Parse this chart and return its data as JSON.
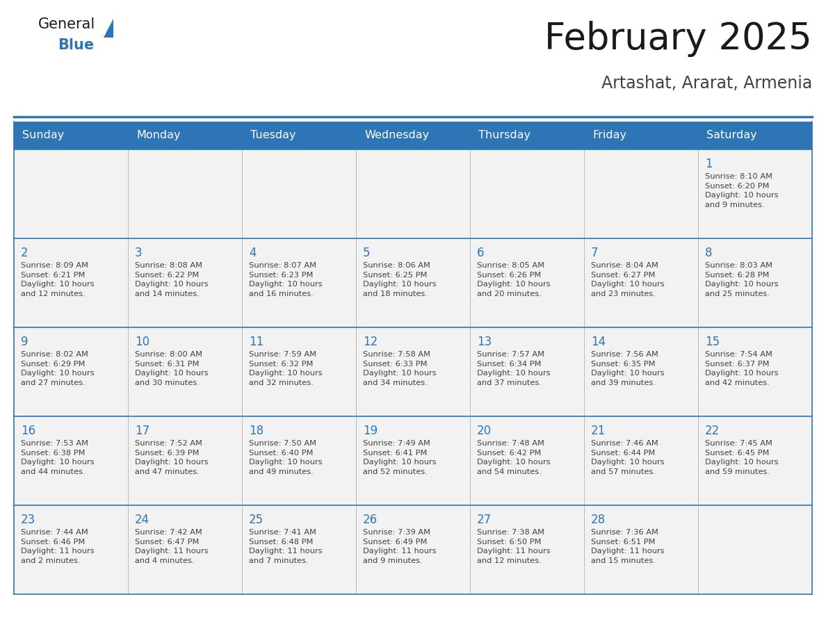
{
  "title": "February 2025",
  "subtitle": "Artashat, Ararat, Armenia",
  "days_of_week": [
    "Sunday",
    "Monday",
    "Tuesday",
    "Wednesday",
    "Thursday",
    "Friday",
    "Saturday"
  ],
  "header_bg": "#2E75B6",
  "header_text": "#FFFFFF",
  "cell_bg": "#F2F2F2",
  "day_number_color": "#2E75B6",
  "info_text_color": "#404040",
  "line_color": "#2E75B6",
  "title_color": "#1a1a1a",
  "subtitle_color": "#404040",
  "calendar": [
    [
      null,
      null,
      null,
      null,
      null,
      null,
      {
        "day": "1",
        "sunrise": "8:10 AM",
        "sunset": "6:20 PM",
        "daylight": "10 hours and 9 minutes."
      }
    ],
    [
      {
        "day": "2",
        "sunrise": "8:09 AM",
        "sunset": "6:21 PM",
        "daylight": "10 hours and 12 minutes."
      },
      {
        "day": "3",
        "sunrise": "8:08 AM",
        "sunset": "6:22 PM",
        "daylight": "10 hours and 14 minutes."
      },
      {
        "day": "4",
        "sunrise": "8:07 AM",
        "sunset": "6:23 PM",
        "daylight": "10 hours and 16 minutes."
      },
      {
        "day": "5",
        "sunrise": "8:06 AM",
        "sunset": "6:25 PM",
        "daylight": "10 hours and 18 minutes."
      },
      {
        "day": "6",
        "sunrise": "8:05 AM",
        "sunset": "6:26 PM",
        "daylight": "10 hours and 20 minutes."
      },
      {
        "day": "7",
        "sunrise": "8:04 AM",
        "sunset": "6:27 PM",
        "daylight": "10 hours and 23 minutes."
      },
      {
        "day": "8",
        "sunrise": "8:03 AM",
        "sunset": "6:28 PM",
        "daylight": "10 hours and 25 minutes."
      }
    ],
    [
      {
        "day": "9",
        "sunrise": "8:02 AM",
        "sunset": "6:29 PM",
        "daylight": "10 hours and 27 minutes."
      },
      {
        "day": "10",
        "sunrise": "8:00 AM",
        "sunset": "6:31 PM",
        "daylight": "10 hours and 30 minutes."
      },
      {
        "day": "11",
        "sunrise": "7:59 AM",
        "sunset": "6:32 PM",
        "daylight": "10 hours and 32 minutes."
      },
      {
        "day": "12",
        "sunrise": "7:58 AM",
        "sunset": "6:33 PM",
        "daylight": "10 hours and 34 minutes."
      },
      {
        "day": "13",
        "sunrise": "7:57 AM",
        "sunset": "6:34 PM",
        "daylight": "10 hours and 37 minutes."
      },
      {
        "day": "14",
        "sunrise": "7:56 AM",
        "sunset": "6:35 PM",
        "daylight": "10 hours and 39 minutes."
      },
      {
        "day": "15",
        "sunrise": "7:54 AM",
        "sunset": "6:37 PM",
        "daylight": "10 hours and 42 minutes."
      }
    ],
    [
      {
        "day": "16",
        "sunrise": "7:53 AM",
        "sunset": "6:38 PM",
        "daylight": "10 hours and 44 minutes."
      },
      {
        "day": "17",
        "sunrise": "7:52 AM",
        "sunset": "6:39 PM",
        "daylight": "10 hours and 47 minutes."
      },
      {
        "day": "18",
        "sunrise": "7:50 AM",
        "sunset": "6:40 PM",
        "daylight": "10 hours and 49 minutes."
      },
      {
        "day": "19",
        "sunrise": "7:49 AM",
        "sunset": "6:41 PM",
        "daylight": "10 hours and 52 minutes."
      },
      {
        "day": "20",
        "sunrise": "7:48 AM",
        "sunset": "6:42 PM",
        "daylight": "10 hours and 54 minutes."
      },
      {
        "day": "21",
        "sunrise": "7:46 AM",
        "sunset": "6:44 PM",
        "daylight": "10 hours and 57 minutes."
      },
      {
        "day": "22",
        "sunrise": "7:45 AM",
        "sunset": "6:45 PM",
        "daylight": "10 hours and 59 minutes."
      }
    ],
    [
      {
        "day": "23",
        "sunrise": "7:44 AM",
        "sunset": "6:46 PM",
        "daylight": "11 hours and 2 minutes."
      },
      {
        "day": "24",
        "sunrise": "7:42 AM",
        "sunset": "6:47 PM",
        "daylight": "11 hours and 4 minutes."
      },
      {
        "day": "25",
        "sunrise": "7:41 AM",
        "sunset": "6:48 PM",
        "daylight": "11 hours and 7 minutes."
      },
      {
        "day": "26",
        "sunrise": "7:39 AM",
        "sunset": "6:49 PM",
        "daylight": "11 hours and 9 minutes."
      },
      {
        "day": "27",
        "sunrise": "7:38 AM",
        "sunset": "6:50 PM",
        "daylight": "11 hours and 12 minutes."
      },
      {
        "day": "28",
        "sunrise": "7:36 AM",
        "sunset": "6:51 PM",
        "daylight": "11 hours and 15 minutes."
      },
      null
    ]
  ]
}
